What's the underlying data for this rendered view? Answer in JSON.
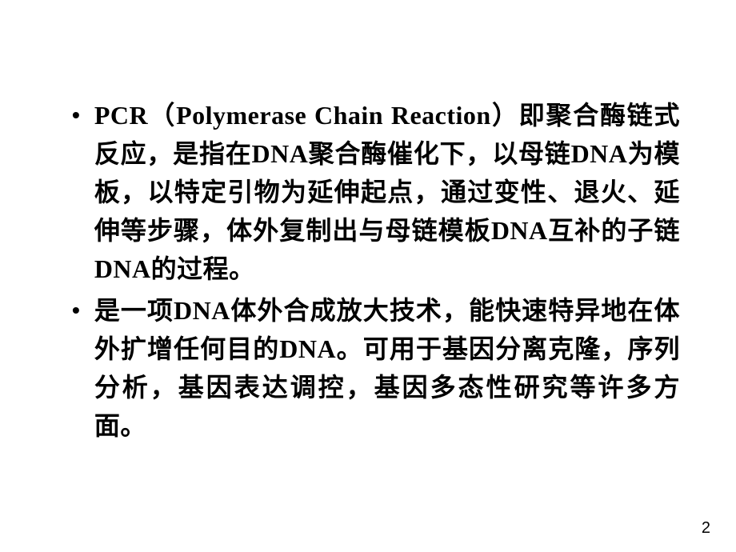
{
  "slide": {
    "background_color": "#ffffff",
    "text_color": "#000000",
    "font_size_pt": 24,
    "line_height_ratio": 1.5,
    "bullets": [
      {
        "marker": "•",
        "text": "PCR（Polymerase Chain Reaction）即聚合酶链式反应，是指在DNA聚合酶催化下，以母链DNA为模板，以特定引物为延伸起点，通过变性、退火、延伸等步骤，体外复制出与母链模板DNA互补的子链DNA的过程。"
      },
      {
        "marker": "•",
        "text": "是一项DNA体外合成放大技术，能快速特异地在体外扩增任何目的DNA。可用于基因分离克隆，序列分析，基因表达调控，基因多态性研究等许多方面。"
      }
    ],
    "page_number": "2"
  }
}
